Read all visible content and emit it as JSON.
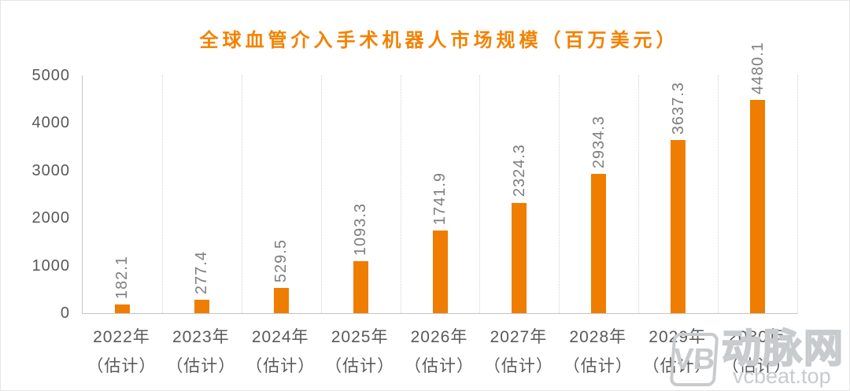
{
  "chart_data": {
    "type": "bar",
    "title": "全球血管介入手术机器人市场规模（百万美元）",
    "title_color": "#f28200",
    "categories": [
      "2022年（估计）",
      "2023年（估计）",
      "2024年（估计）",
      "2025年（估计）",
      "2026年（估计）",
      "2027年（估计）",
      "2028年（估计）",
      "2029年（估计）",
      "2030年（估计）"
    ],
    "values": [
      182.1,
      277.4,
      529.5,
      1093.3,
      1741.9,
      2324.3,
      2934.3,
      3637.3,
      4480.1
    ],
    "bar_color": "#ee7d00",
    "value_label_color": "#7f7f7f",
    "axis_label_color": "#595959",
    "xlabel": "",
    "ylabel": "",
    "ylim": [
      0,
      5000
    ],
    "yticks": [
      0,
      1000,
      2000,
      3000,
      4000,
      5000
    ],
    "grid": "vertical dotted separators between categories",
    "legend": "none",
    "value_label_style": "rotated 90° (reads bottom-to-top), above each bar"
  },
  "watermark": {
    "logo_text": "VB",
    "brand": "动脉网",
    "domain": "vcbeat.top",
    "color": "#c8cbcd"
  }
}
